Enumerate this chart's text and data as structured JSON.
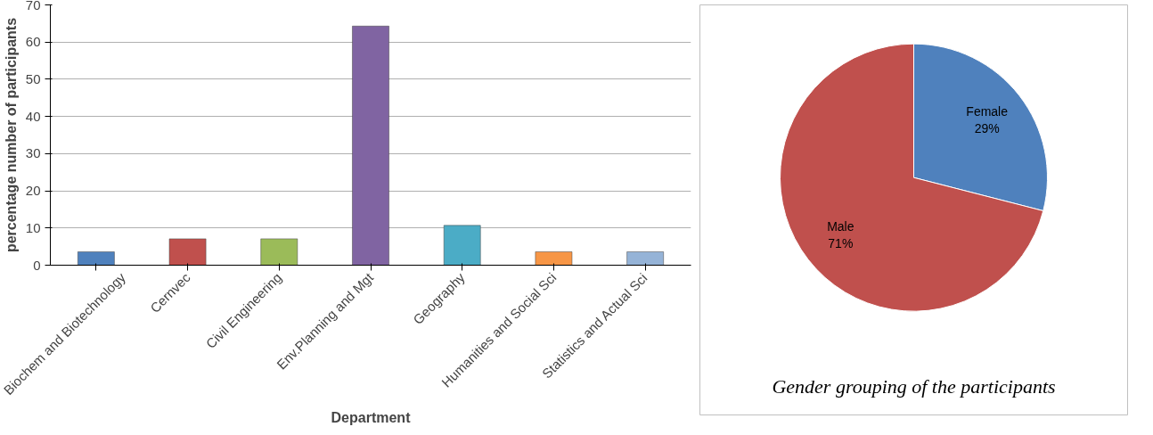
{
  "chart_data": [
    {
      "type": "bar",
      "xlabel": "Department",
      "ylabel": "percentage number of participants",
      "categories": [
        "Biochem and Biotechnology",
        "Cernvec",
        "Civil Engineering",
        "Env.Planning and Mgt",
        "Geography",
        "Humanities and Social Sci",
        "Statistics and Actual Sci"
      ],
      "values": [
        3.6,
        7.1,
        7.1,
        64.3,
        10.7,
        3.6,
        3.6
      ],
      "colors": [
        "#4f81bd",
        "#c0504d",
        "#9bbb59",
        "#8064a2",
        "#4bacc6",
        "#f79646",
        "#95b3d7"
      ],
      "ylim": [
        0,
        70
      ],
      "yticks": [
        0,
        10,
        20,
        30,
        40,
        50,
        60,
        70
      ],
      "grid": "y"
    },
    {
      "type": "pie",
      "title": "Gender grouping of the participants",
      "categories": [
        "Female",
        "Male"
      ],
      "values": [
        29,
        71
      ],
      "colors": [
        "#4f81bd",
        "#c0504d"
      ],
      "value_labels": [
        "29%",
        "71%"
      ]
    }
  ]
}
